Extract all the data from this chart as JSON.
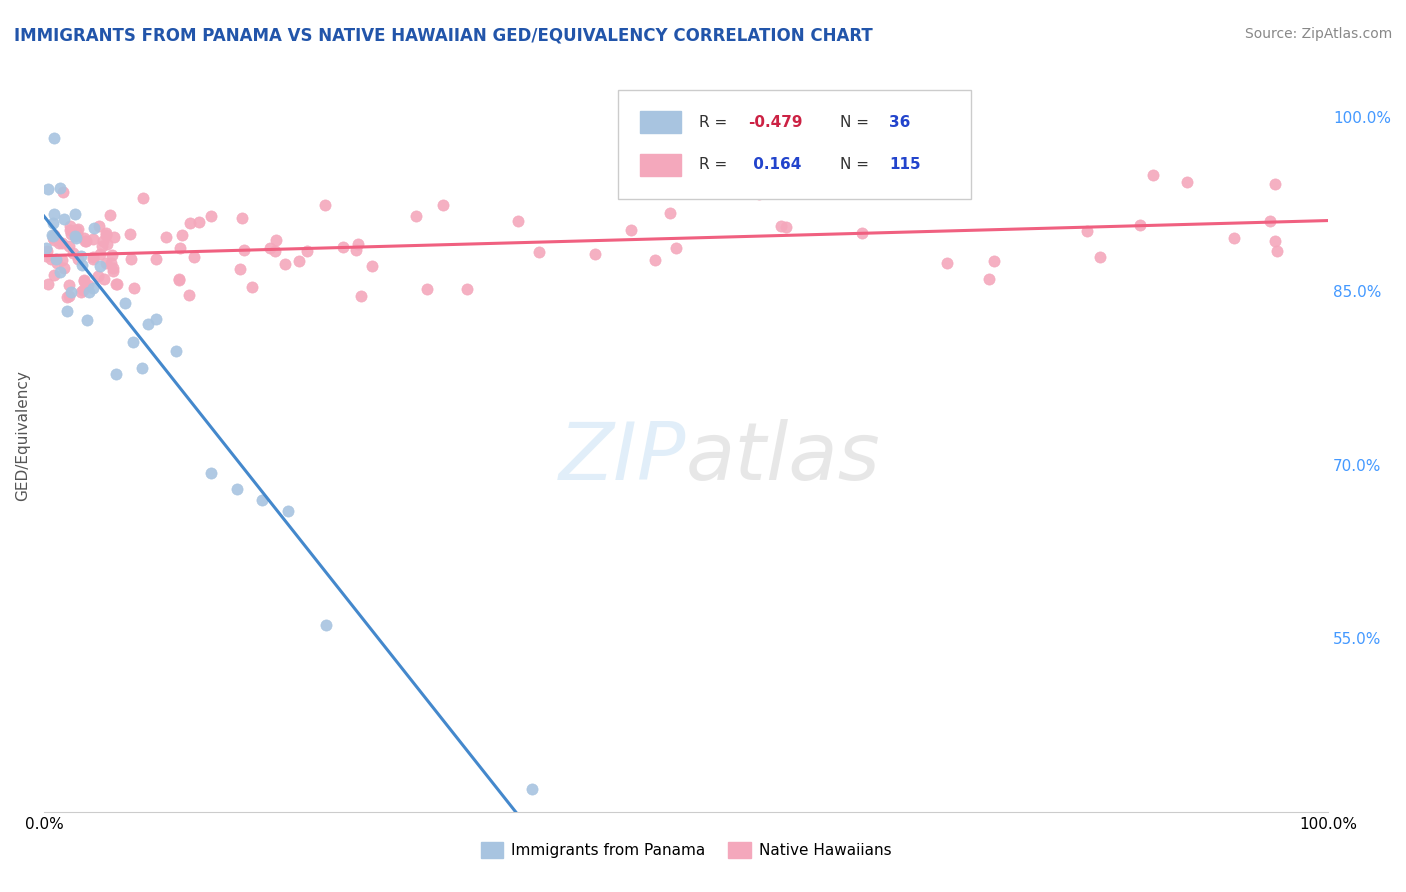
{
  "title": "IMMIGRANTS FROM PANAMA VS NATIVE HAWAIIAN GED/EQUIVALENCY CORRELATION CHART",
  "source": "Source: ZipAtlas.com",
  "ylabel": "GED/Equivalency",
  "xlim": [
    0.0,
    1.0
  ],
  "ylim": [
    0.4,
    1.05
  ],
  "x_tick_labels": [
    "0.0%",
    "100.0%"
  ],
  "y_tick_labels_right": [
    "100.0%",
    "85.0%",
    "70.0%",
    "55.0%"
  ],
  "y_tick_values_right": [
    1.0,
    0.85,
    0.7,
    0.55
  ],
  "blue_color": "#a8c4e0",
  "pink_color": "#f4a8bc",
  "blue_line_color": "#4488cc",
  "pink_line_color": "#f06080",
  "title_color": "#2255aa",
  "source_color": "#888888",
  "right_axis_color": "#4499ff",
  "background_color": "#ffffff",
  "grid_color": "#cccccc",
  "legend_box_color": "#eeeeee"
}
